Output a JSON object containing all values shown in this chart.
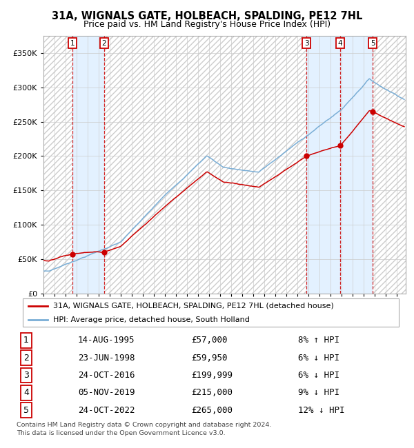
{
  "title": "31A, WIGNALS GATE, HOLBEACH, SPALDING, PE12 7HL",
  "subtitle": "Price paid vs. HM Land Registry's House Price Index (HPI)",
  "footer": "Contains HM Land Registry data © Crown copyright and database right 2024.\nThis data is licensed under the Open Government Licence v3.0.",
  "legend_label_red": "31A, WIGNALS GATE, HOLBEACH, SPALDING, PE12 7HL (detached house)",
  "legend_label_blue": "HPI: Average price, detached house, South Holland",
  "purchases": [
    {
      "num": 1,
      "date_label": "14-AUG-1995",
      "price": 57000,
      "hpi_pct": "8% ↑ HPI",
      "year_x": 1995.62
    },
    {
      "num": 2,
      "date_label": "23-JUN-1998",
      "price": 59950,
      "hpi_pct": "6% ↓ HPI",
      "year_x": 1998.48
    },
    {
      "num": 3,
      "date_label": "24-OCT-2016",
      "price": 199999,
      "hpi_pct": "6% ↓ HPI",
      "year_x": 2016.82
    },
    {
      "num": 4,
      "date_label": "05-NOV-2019",
      "price": 215000,
      "hpi_pct": "9% ↓ HPI",
      "year_x": 2019.85
    },
    {
      "num": 5,
      "date_label": "24-OCT-2022",
      "price": 265000,
      "hpi_pct": "12% ↓ HPI",
      "year_x": 2022.82
    }
  ],
  "red_color": "#cc0000",
  "blue_color": "#7aaed6",
  "shaded_color": "#ddeeff",
  "hatch_color": "#cccccc",
  "grid_color": "#cccccc",
  "ylim": [
    0,
    375000
  ],
  "xlim_start": 1993.0,
  "xlim_end": 2025.8,
  "yticks": [
    0,
    50000,
    100000,
    150000,
    200000,
    250000,
    300000,
    350000
  ]
}
